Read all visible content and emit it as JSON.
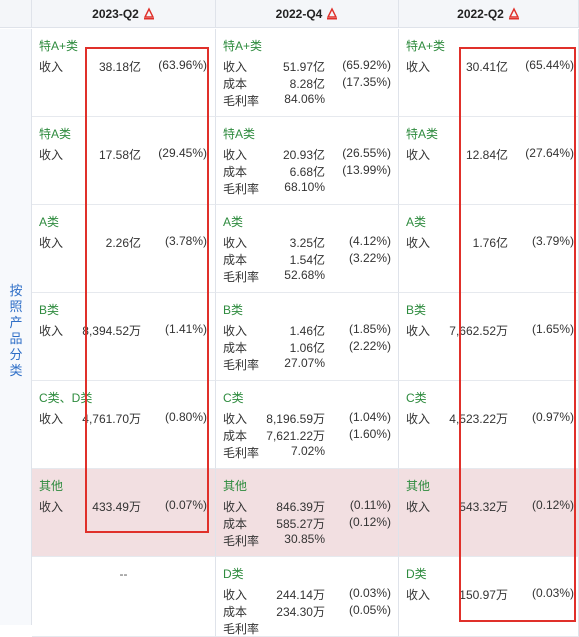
{
  "header": {
    "columns": [
      {
        "label": "2023-Q2"
      },
      {
        "label": "2022-Q4"
      },
      {
        "label": "2022-Q2"
      }
    ]
  },
  "side_label": "按照产品分类",
  "labels": {
    "revenue": "收入",
    "cost": "成本",
    "margin": "毛利率"
  },
  "placeholder_dash": "--",
  "rows": [
    {
      "category": "特A+类",
      "cells": [
        {
          "revenue": "38.18亿",
          "revenue_pct": "(63.96%)"
        },
        {
          "revenue": "51.97亿",
          "revenue_pct": "(65.92%)",
          "cost": "8.28亿",
          "cost_pct": "(17.35%)",
          "margin": "84.06%"
        },
        {
          "revenue": "30.41亿",
          "revenue_pct": "(65.44%)"
        }
      ]
    },
    {
      "category": "特A类",
      "cells": [
        {
          "revenue": "17.58亿",
          "revenue_pct": "(29.45%)"
        },
        {
          "revenue": "20.93亿",
          "revenue_pct": "(26.55%)",
          "cost": "6.68亿",
          "cost_pct": "(13.99%)",
          "margin": "68.10%"
        },
        {
          "revenue": "12.84亿",
          "revenue_pct": "(27.64%)"
        }
      ]
    },
    {
      "category": "A类",
      "cells": [
        {
          "revenue": "2.26亿",
          "revenue_pct": "(3.78%)"
        },
        {
          "revenue": "3.25亿",
          "revenue_pct": "(4.12%)",
          "cost": "1.54亿",
          "cost_pct": "(3.22%)",
          "margin": "52.68%"
        },
        {
          "revenue": "1.76亿",
          "revenue_pct": "(3.79%)"
        }
      ]
    },
    {
      "category": "B类",
      "cells": [
        {
          "revenue": "8,394.52万",
          "revenue_pct": "(1.41%)"
        },
        {
          "revenue": "1.46亿",
          "revenue_pct": "(1.85%)",
          "cost": "1.06亿",
          "cost_pct": "(2.22%)",
          "margin": "27.07%"
        },
        {
          "revenue": "7,662.52万",
          "revenue_pct": "(1.65%)"
        }
      ]
    },
    {
      "category_2023": "C类、D类",
      "category": "C类",
      "cells": [
        {
          "revenue": "4,761.70万",
          "revenue_pct": "(0.80%)"
        },
        {
          "revenue": "8,196.59万",
          "revenue_pct": "(1.04%)",
          "cost": "7,621.22万",
          "cost_pct": "(1.60%)",
          "margin": "7.02%"
        },
        {
          "revenue": "4,523.22万",
          "revenue_pct": "(0.97%)"
        }
      ]
    },
    {
      "category": "其他",
      "cells": [
        {
          "revenue": "433.49万",
          "revenue_pct": "(0.07%)"
        },
        {
          "revenue": "846.39万",
          "revenue_pct": "(0.11%)",
          "cost": "585.27万",
          "cost_pct": "(0.12%)",
          "margin": "30.85%"
        },
        {
          "revenue": "543.32万",
          "revenue_pct": "(0.12%)"
        }
      ]
    },
    {
      "category": "D类",
      "cells": [
        {},
        {
          "revenue": "244.14万",
          "revenue_pct": "(0.03%)",
          "cost": "234.30万",
          "cost_pct": "(0.05%)"
        },
        {
          "revenue": "150.97万",
          "revenue_pct": "(0.03%)"
        }
      ]
    }
  ],
  "colors": {
    "highlight": "#e0302a",
    "category": "#2e8b3e",
    "side_label": "#2f6fc7",
    "other_row_bg": "#f2dfe1"
  },
  "icons": {
    "header_icon": "pdf-icon"
  }
}
